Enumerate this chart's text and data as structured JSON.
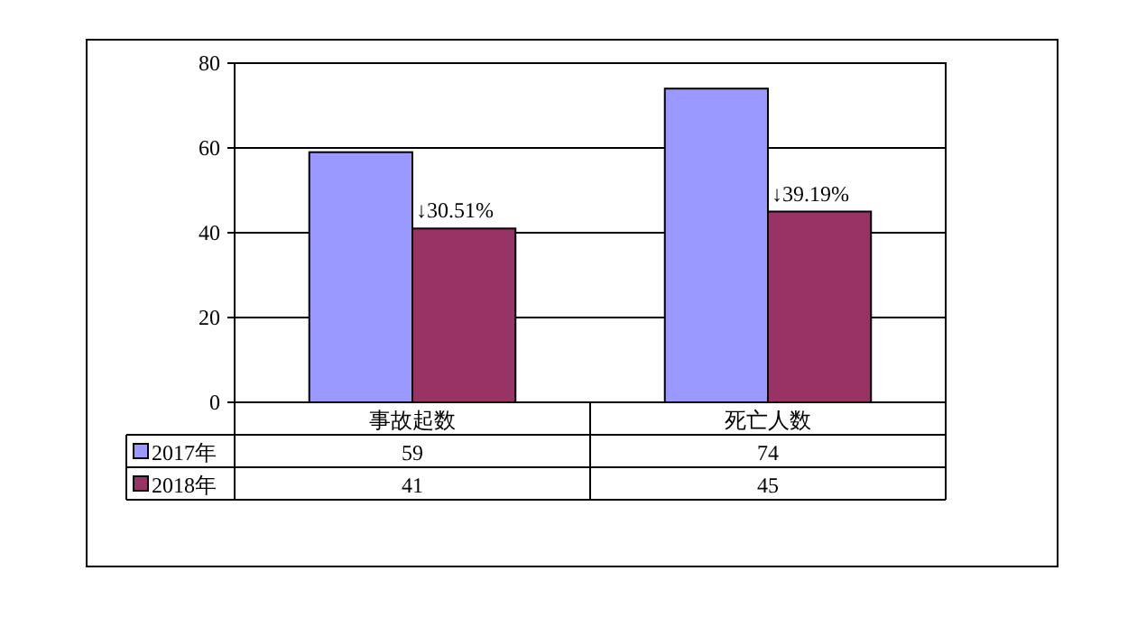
{
  "chart_data": {
    "type": "bar",
    "categories": [
      "事故起数",
      "死亡人数"
    ],
    "series": [
      {
        "name": "2017年",
        "color": "#9999ff",
        "values": [
          59,
          74
        ]
      },
      {
        "name": "2018年",
        "color": "#993366",
        "values": [
          41,
          45
        ]
      }
    ],
    "ylim": [
      0,
      80
    ],
    "yticks": [
      0,
      20,
      40,
      60,
      80
    ],
    "grid": "y",
    "data_labels": true,
    "legend": "bottom",
    "annotations": [
      {
        "text": "↓30.51%",
        "x": "事故起数",
        "y": 41
      },
      {
        "text": "↓39.19%",
        "x": "死亡人数",
        "y": 45
      }
    ]
  }
}
